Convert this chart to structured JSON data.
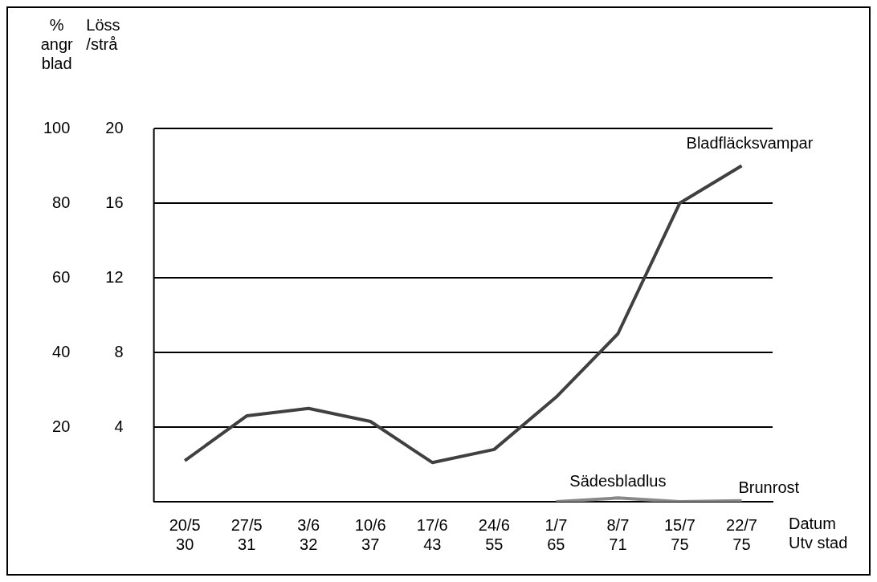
{
  "chart_data": {
    "type": "line",
    "xlabel": "Datum\nUtv stad",
    "ylabel": "%\nangr\nblad",
    "y2label": "Löss\n/strå",
    "categories": [
      "20/5\n30",
      "27/5\n31",
      "3/6\n32",
      "10/6\n37",
      "17/6\n43",
      "24/6\n55",
      "1/7\n65",
      "8/7\n71",
      "15/7\n75",
      "22/7\n75"
    ],
    "series": [
      {
        "name": "Bladfläcksvampar",
        "color": "#404040",
        "values": [
          11,
          23,
          25,
          21.5,
          10.5,
          14,
          28,
          45,
          80,
          90
        ]
      },
      {
        "name": "Sädesbladlus",
        "color": "#888888",
        "axis": "y2",
        "values": [
          null,
          null,
          null,
          null,
          null,
          null,
          0,
          0.2,
          0,
          0.05
        ]
      }
    ],
    "annotations": [
      "Brunrost"
    ],
    "ylim": [
      0,
      100
    ],
    "yticks": [
      20,
      40,
      60,
      80,
      100
    ],
    "y2lim": [
      0,
      20
    ],
    "y2ticks": [
      4,
      8,
      12,
      16,
      20
    ],
    "grid": "y",
    "legend": false,
    "marker": "none",
    "line_style": "solid"
  }
}
